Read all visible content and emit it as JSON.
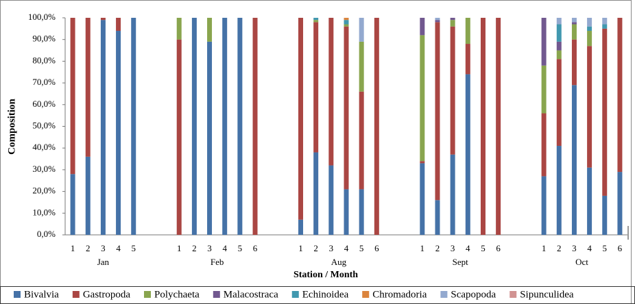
{
  "chart_data": {
    "type": "stacked_bar",
    "y_label": "Composition",
    "x_label": "Station / Month",
    "categories": [
      "1",
      "2",
      "3",
      "4",
      "5",
      null,
      null,
      "1",
      "2",
      "3",
      "4",
      "5",
      "6",
      null,
      null,
      "1",
      "2",
      "3",
      "4",
      "5",
      "6",
      null,
      null,
      "1",
      "2",
      "3",
      "4",
      "5",
      "6",
      null,
      null,
      "1",
      "2",
      "3",
      "4",
      "5",
      "6"
    ],
    "months": [
      "Jan",
      "Feb",
      "Aug",
      "Sept",
      "Oct"
    ],
    "ylim": [
      0,
      100
    ],
    "yticks": [
      {
        "value": 0,
        "label": "0,0%"
      },
      {
        "value": 10,
        "label": "10,0%"
      },
      {
        "value": 20,
        "label": "20,0%"
      },
      {
        "value": 30,
        "label": "30,0%"
      },
      {
        "value": 40,
        "label": "40,0%"
      },
      {
        "value": 50,
        "label": "50,0%"
      },
      {
        "value": 60,
        "label": "60,0%"
      },
      {
        "value": 70,
        "label": "70,0%"
      },
      {
        "value": 80,
        "label": "80,0%"
      },
      {
        "value": 90,
        "label": "90,0%"
      },
      {
        "value": 100,
        "label": "100,0%"
      }
    ],
    "grid": false,
    "legend": "bottom",
    "series": [
      {
        "name": "Bivalvia",
        "color": "#4572a7",
        "values": [
          28,
          36,
          99,
          94,
          100,
          null,
          null,
          0,
          100,
          89,
          100,
          100,
          0,
          null,
          null,
          7,
          38,
          32,
          21,
          21,
          0,
          null,
          null,
          33,
          16,
          37,
          74,
          0,
          0,
          null,
          null,
          27,
          41,
          69,
          31,
          18,
          29
        ]
      },
      {
        "name": "Gastropoda",
        "color": "#aa4643",
        "values": [
          72,
          64,
          1,
          6,
          0,
          null,
          null,
          90,
          0,
          0,
          0,
          0,
          100,
          null,
          null,
          93,
          60,
          68,
          75,
          45,
          100,
          null,
          null,
          1,
          82,
          59,
          14,
          100,
          100,
          null,
          null,
          29,
          40,
          21,
          56,
          77,
          71
        ]
      },
      {
        "name": "Polychaeta",
        "color": "#89a54e",
        "values": [
          0,
          0,
          0,
          0,
          0,
          null,
          null,
          10,
          0,
          11,
          0,
          0,
          0,
          null,
          null,
          0,
          1,
          0,
          1,
          23,
          0,
          null,
          null,
          58,
          0,
          3,
          12,
          0,
          0,
          null,
          null,
          22,
          4,
          7,
          7,
          0,
          0
        ]
      },
      {
        "name": "Malacostraca",
        "color": "#71588f",
        "values": [
          0,
          0,
          0,
          0,
          0,
          null,
          null,
          0,
          0,
          0,
          0,
          0,
          0,
          null,
          null,
          0,
          0,
          0,
          0,
          0,
          0,
          null,
          null,
          8,
          1,
          1,
          0,
          0,
          0,
          null,
          null,
          22,
          4,
          1,
          0,
          0,
          0
        ]
      },
      {
        "name": "Echinoidea",
        "color": "#4198af",
        "values": [
          0,
          0,
          0,
          0,
          0,
          null,
          null,
          0,
          0,
          0,
          0,
          0,
          0,
          null,
          null,
          0,
          1,
          0,
          2,
          0,
          0,
          null,
          null,
          0,
          0,
          0,
          0,
          0,
          0,
          null,
          null,
          0,
          8,
          0,
          2,
          2,
          0
        ]
      },
      {
        "name": "Chromadoria",
        "color": "#db843d",
        "values": [
          0,
          0,
          0,
          0,
          0,
          null,
          null,
          0,
          0,
          0,
          0,
          0,
          0,
          null,
          null,
          0,
          0,
          0,
          1,
          0,
          0,
          null,
          null,
          0,
          0,
          0,
          0,
          0,
          0,
          null,
          null,
          0,
          0,
          0,
          0,
          0,
          0
        ]
      },
      {
        "name": "Scapopoda",
        "color": "#93a9cf",
        "values": [
          0,
          0,
          0,
          0,
          0,
          null,
          null,
          0,
          0,
          0,
          0,
          0,
          0,
          null,
          null,
          0,
          0,
          0,
          0,
          11,
          0,
          null,
          null,
          0,
          1,
          0,
          0,
          0,
          0,
          null,
          null,
          0,
          3,
          2,
          4,
          3,
          0
        ]
      },
      {
        "name": "Sipunculidea",
        "color": "#d19392",
        "values": [
          0,
          0,
          0,
          0,
          0,
          null,
          null,
          0,
          0,
          0,
          0,
          0,
          0,
          null,
          null,
          0,
          0,
          0,
          0,
          0,
          0,
          null,
          null,
          0,
          0,
          0,
          0,
          0,
          0,
          null,
          null,
          0,
          0,
          0,
          0,
          0,
          0
        ]
      }
    ]
  }
}
